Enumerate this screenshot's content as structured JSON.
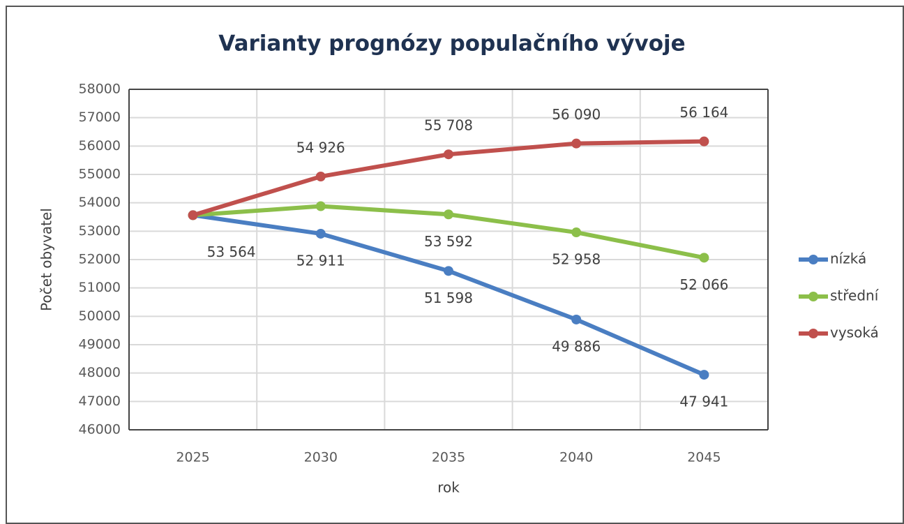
{
  "chart_data": {
    "type": "line",
    "title": "Varianty prognózy populačního vývoje",
    "x_label": "rok",
    "y_label": "Počet obyvatel",
    "categories": [
      "2025",
      "2030",
      "2035",
      "2040",
      "2045"
    ],
    "ylim": [
      46000,
      58000
    ],
    "yticks": [
      46000,
      47000,
      48000,
      49000,
      50000,
      51000,
      52000,
      53000,
      54000,
      55000,
      56000,
      57000,
      58000
    ],
    "grid": true,
    "legend": "right",
    "series": [
      {
        "name": "nízká",
        "color": "#4a7ec2",
        "values": [
          53564,
          52911,
          51598,
          49886,
          47941
        ],
        "value_labels": [
          "53 564",
          "52 911",
          "51 598",
          "49 886",
          "47 941"
        ]
      },
      {
        "name": "střední",
        "color": "#8cbf4a",
        "values": [
          53564,
          53880,
          53592,
          52958,
          52066
        ],
        "value_labels": [
          null,
          null,
          "53 592",
          "52 958",
          "52 066"
        ]
      },
      {
        "name": "vysoká",
        "color": "#c0504d",
        "values": [
          53564,
          54926,
          55708,
          56090,
          56164
        ],
        "value_labels": [
          null,
          "54 926",
          "55 708",
          "56 090",
          "56 164"
        ]
      }
    ]
  }
}
